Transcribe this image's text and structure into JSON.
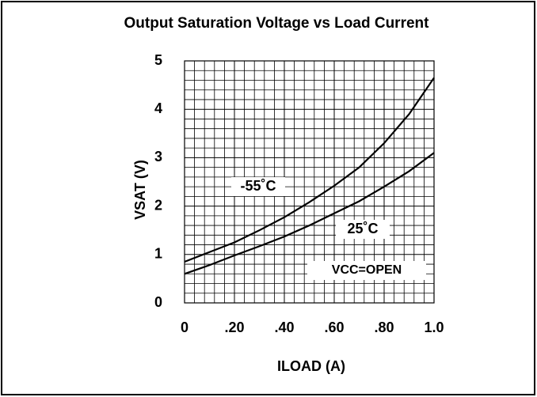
{
  "chart_data": {
    "type": "line",
    "title": "Output Saturation Voltage vs Load Current",
    "x_label": "ILOAD (A)",
    "y_label": "VSAT (V)",
    "annotation": "VCC=OPEN",
    "x": [
      0,
      0.1,
      0.2,
      0.3,
      0.4,
      0.5,
      0.6,
      0.7,
      0.8,
      0.9,
      1.0
    ],
    "series": [
      {
        "name": "-55˚C",
        "color": "#000000",
        "values": [
          0.85,
          1.05,
          1.25,
          1.5,
          1.77,
          2.08,
          2.42,
          2.8,
          3.3,
          3.9,
          4.65
        ]
      },
      {
        "name": "25˚C",
        "color": "#000000",
        "values": [
          0.6,
          0.78,
          0.98,
          1.17,
          1.37,
          1.6,
          1.85,
          2.1,
          2.4,
          2.72,
          3.1
        ]
      }
    ],
    "xlim": [
      0,
      1.0
    ],
    "ylim": [
      0,
      5
    ],
    "xticks": [
      0,
      {
        "value": 0.2,
        "label": ".20"
      },
      {
        "value": 0.4,
        "label": ".40"
      },
      {
        "value": 0.6,
        "label": ".60"
      },
      {
        "value": 0.8,
        "label": ".80"
      },
      {
        "value": 1.0,
        "label": "1.0"
      }
    ],
    "yticks": [
      0,
      1,
      2,
      3,
      4,
      5
    ],
    "grid": true
  }
}
